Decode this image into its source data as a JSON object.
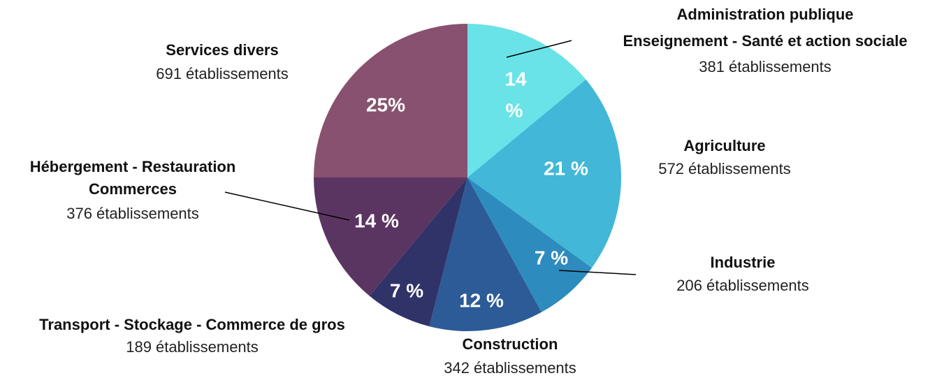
{
  "chart_data": {
    "type": "pie",
    "categories": [
      [
        "Administration publique",
        "Enseignement - Santé et action sociale"
      ],
      [
        "Agriculture"
      ],
      [
        "Industrie"
      ],
      [
        "Construction"
      ],
      [
        "Transport - Stockage - Commerce de gros"
      ],
      [
        "Hébergement - Restauration",
        "Commerces"
      ],
      [
        "Services divers"
      ]
    ],
    "sublabels": [
      "381 établissements",
      "572 établissements",
      "206 établissements",
      "342 établissements",
      "189 établissements",
      "376 établissements",
      "691 établissements"
    ],
    "values": [
      14,
      21,
      7,
      12,
      7,
      14,
      25
    ],
    "value_labels": [
      [
        "14",
        "%"
      ],
      [
        "21 %"
      ],
      [
        "7 %"
      ],
      [
        "12 %"
      ],
      [
        "7 %"
      ],
      [
        "14 %"
      ],
      [
        "25%"
      ]
    ],
    "colors": [
      "#6ae3e8",
      "#42b7d8",
      "#2e8bbd",
      "#2c5b97",
      "#2f3368",
      "#5b3562",
      "#88516f"
    ]
  }
}
